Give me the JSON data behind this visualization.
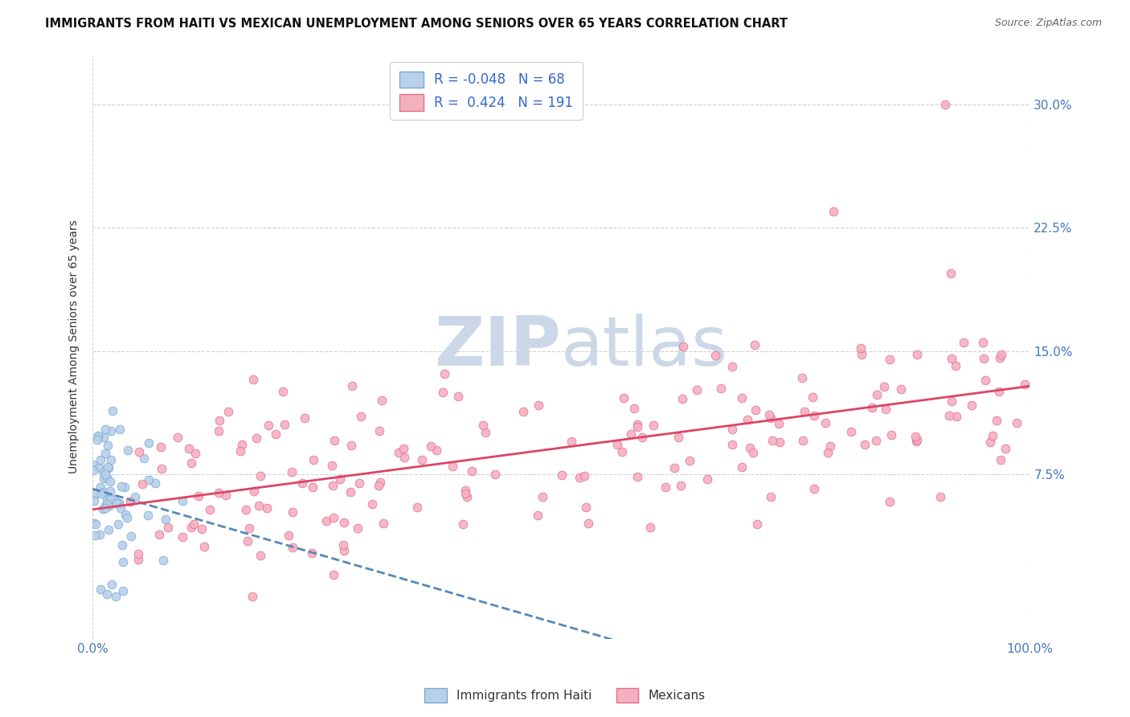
{
  "title": "IMMIGRANTS FROM HAITI VS MEXICAN UNEMPLOYMENT AMONG SENIORS OVER 65 YEARS CORRELATION CHART",
  "source": "Source: ZipAtlas.com",
  "ylabel": "Unemployment Among Seniors over 65 years",
  "xlim": [
    0.0,
    1.0
  ],
  "ylim": [
    -0.025,
    0.33
  ],
  "legend_labels": [
    "Immigrants from Haiti",
    "Mexicans"
  ],
  "R_haiti": -0.048,
  "N_haiti": 68,
  "R_mexican": 0.424,
  "N_mexican": 191,
  "color_haiti_fill": "#b8d0ea",
  "color_haiti_edge": "#7aaad0",
  "color_mexican_fill": "#f5b0c0",
  "color_mexican_edge": "#e07090",
  "color_regression_haiti": "#5588bb",
  "color_regression_mexican": "#dd4466",
  "watermark_color": "#ccd8e8",
  "background_color": "#ffffff",
  "ytick_vals": [
    0.075,
    0.15,
    0.225,
    0.3
  ],
  "ytick_labels": [
    "7.5%",
    "15.0%",
    "22.5%",
    "30.0%"
  ]
}
